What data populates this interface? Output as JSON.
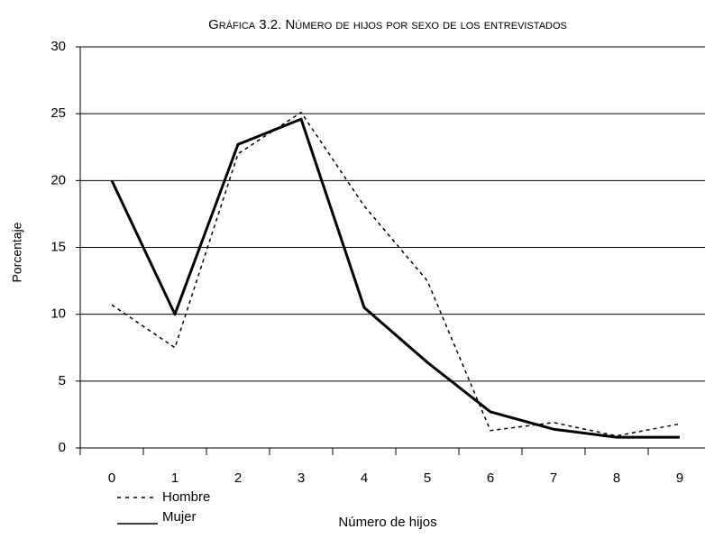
{
  "chart_data": {
    "type": "line",
    "title": "Gráfica 3.2. Número de hijos por sexo de los entrevistados",
    "x_label": "Número de hijos",
    "y_label": "Porcentaje",
    "categories": [
      "0",
      "1",
      "2",
      "3",
      "4",
      "5",
      "6",
      "7",
      "8",
      "9"
    ],
    "series": [
      {
        "name": "Hombre",
        "color": "#000000",
        "line_style": "dashed",
        "values": [
          10.7,
          7.5,
          22.0,
          25.1,
          18.1,
          12.5,
          1.3,
          1.9,
          0.9,
          1.8
        ]
      },
      {
        "name": "Mujer",
        "color": "#000000",
        "line_style": "solid",
        "values": [
          20.0,
          10.0,
          22.7,
          24.6,
          10.5,
          6.4,
          2.7,
          1.4,
          0.8,
          0.8
        ]
      }
    ],
    "ylim": [
      0,
      30
    ],
    "yticks": [
      0,
      5,
      10,
      15,
      20,
      25,
      30
    ],
    "grid": true,
    "legend": "bottom-left"
  }
}
